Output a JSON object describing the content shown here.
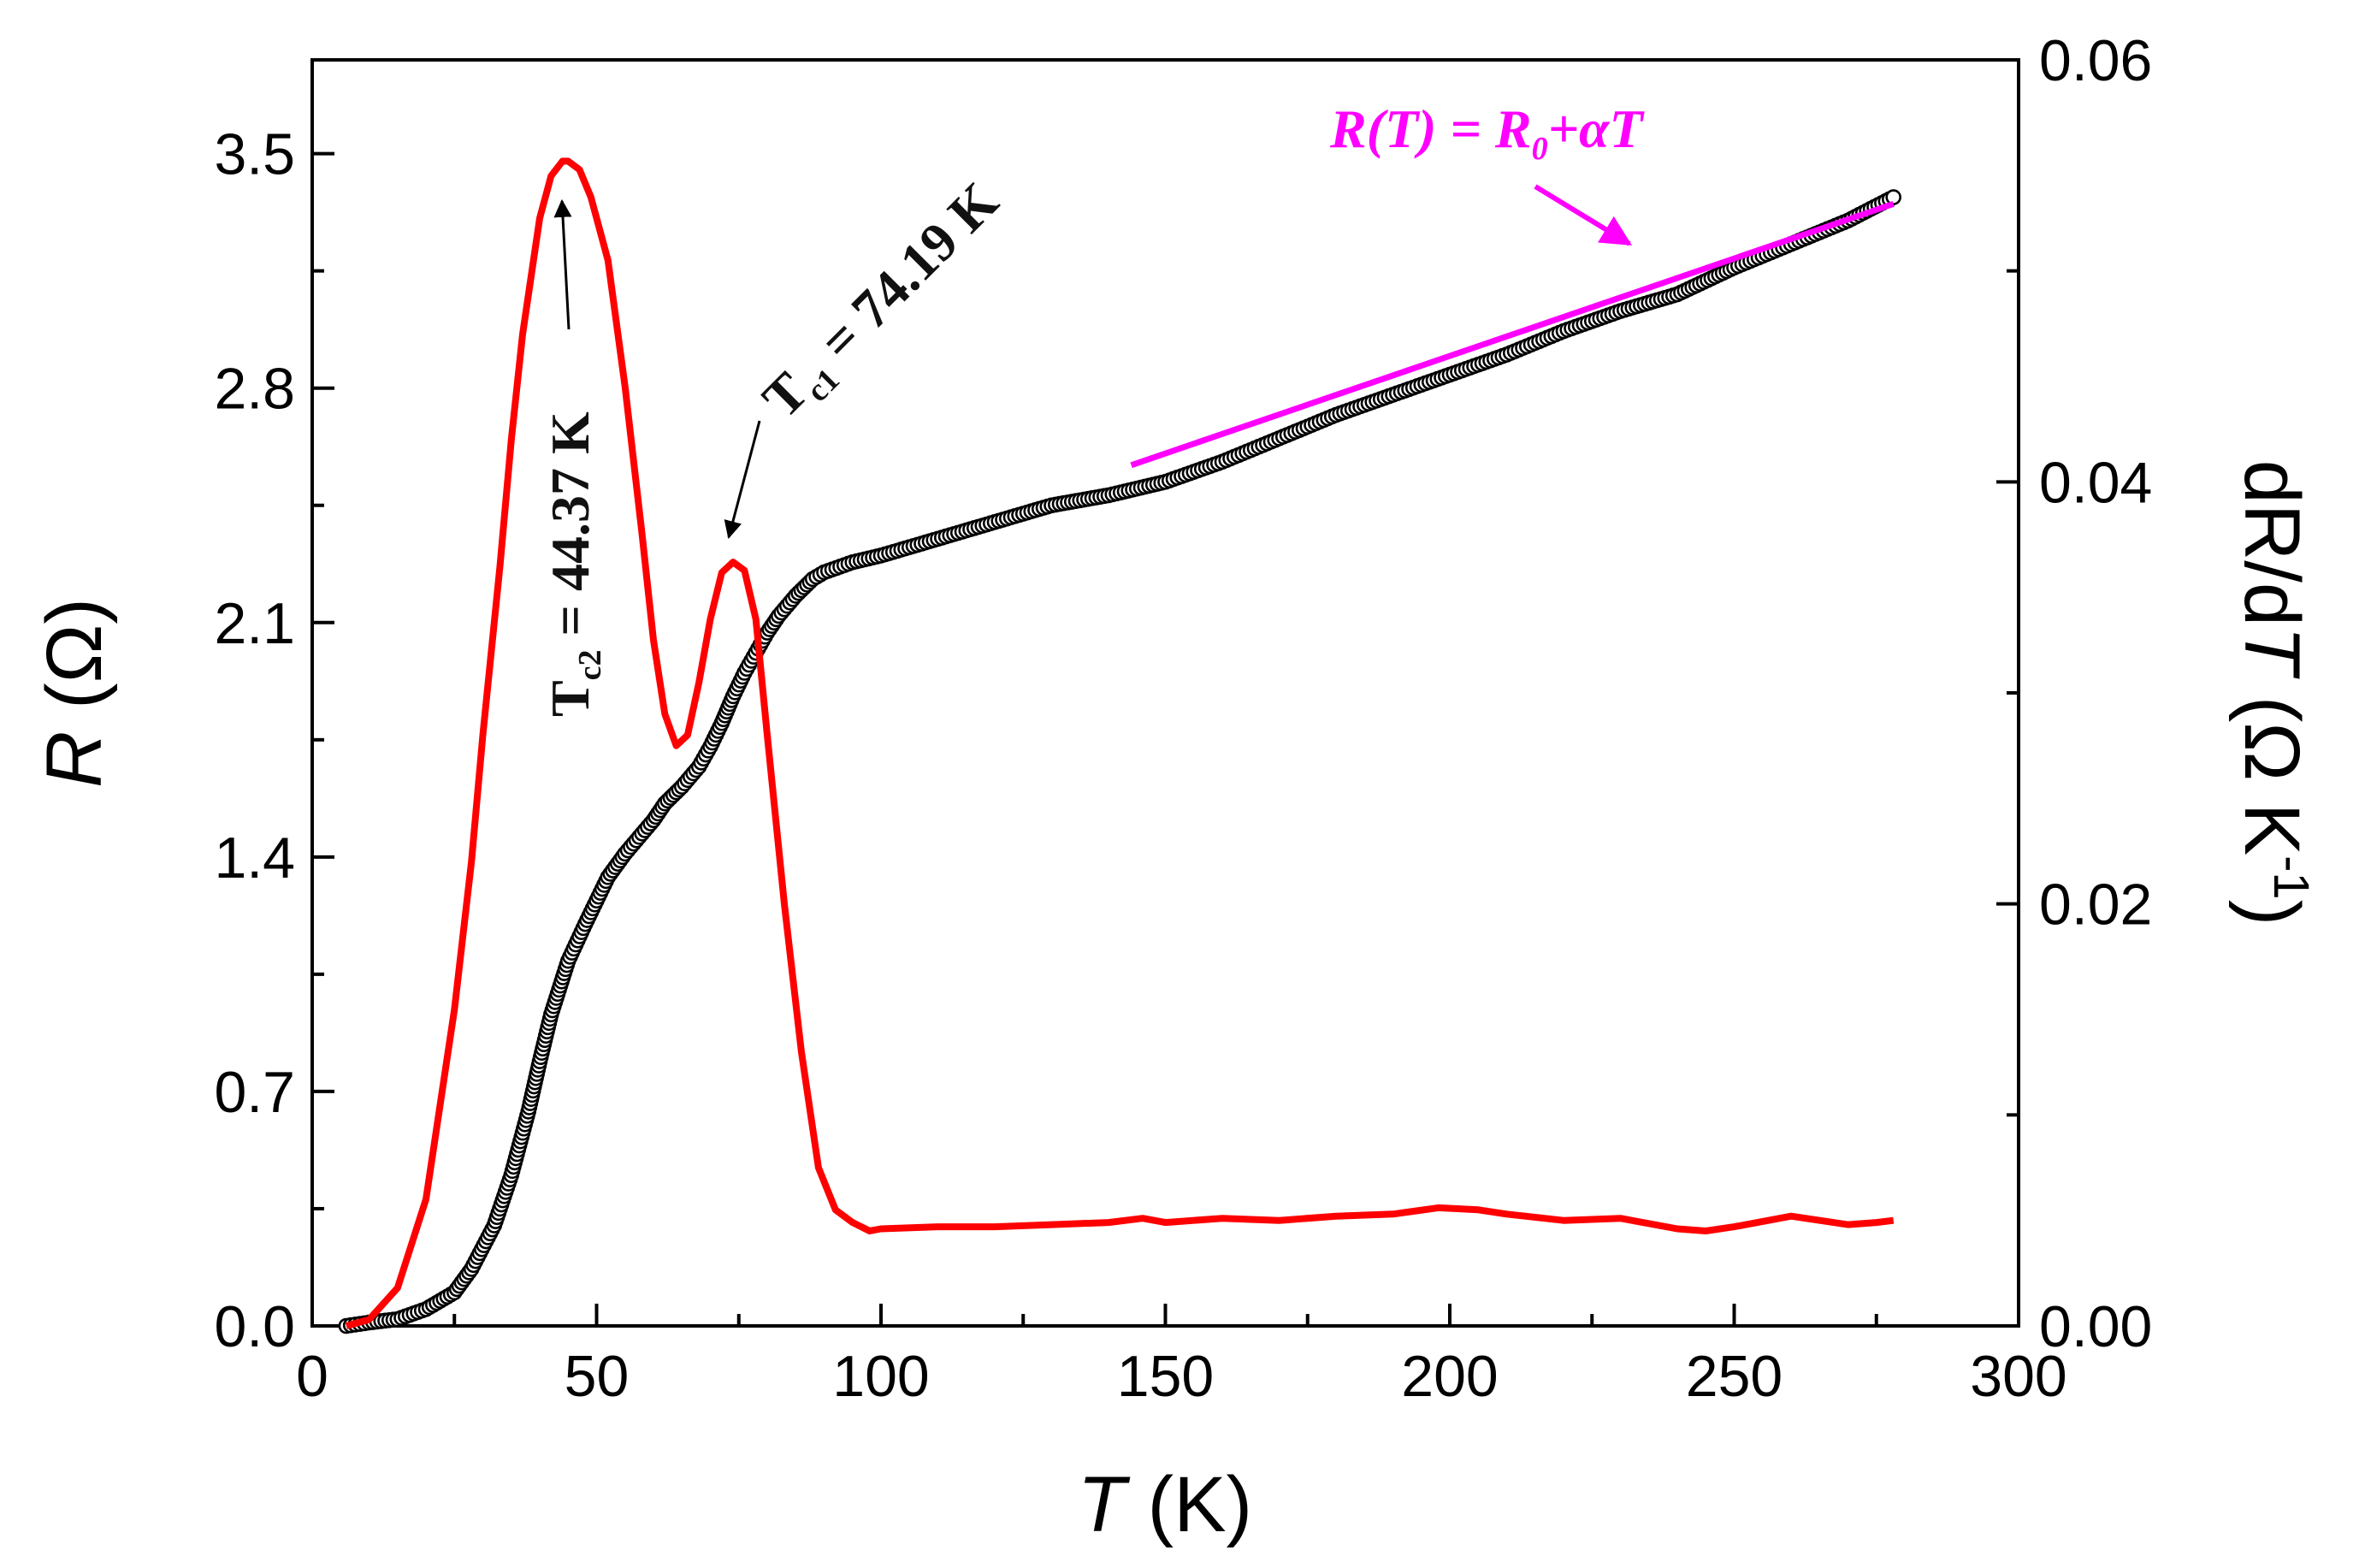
{
  "chart_data": {
    "type": "scatter",
    "title": "",
    "xlabel": {
      "italic": "T",
      "rest": " (K)"
    },
    "ylabel_left": {
      "italic": "R",
      "rest": " (Ω)"
    },
    "ylabel_right": {
      "pre": "dR/d",
      "italic": "T",
      "rest": " (Ω K",
      "sup": "-1",
      "close": ")"
    },
    "xlim": [
      0,
      300
    ],
    "ylim_left": [
      0,
      3.78
    ],
    "ylim_right": [
      0,
      0.06
    ],
    "x_ticks": [
      "0",
      "50",
      "100",
      "150",
      "200",
      "250",
      "300"
    ],
    "y_left_ticks": [
      "0.0",
      "0.7",
      "1.4",
      "2.1",
      "2.8",
      "3.5"
    ],
    "y_right_ticks": [
      "0.00",
      "0.02",
      "0.04",
      "0.06"
    ],
    "series": [
      {
        "name": "R(T)",
        "axis": "left",
        "style": "open-circles",
        "color": "#000000",
        "x": [
          6,
          10,
          15,
          20,
          25,
          28,
          32,
          35,
          38,
          40,
          42,
          45,
          48,
          50,
          52,
          55,
          58,
          60,
          62,
          65,
          68,
          70,
          72,
          74,
          76,
          78,
          80,
          82,
          85,
          88,
          90,
          95,
          100,
          110,
          120,
          130,
          140,
          150,
          160,
          170,
          180,
          190,
          200,
          210,
          220,
          230,
          240,
          250,
          260,
          270,
          278
        ],
        "y": [
          0.0,
          0.01,
          0.02,
          0.05,
          0.1,
          0.17,
          0.3,
          0.45,
          0.64,
          0.79,
          0.93,
          1.09,
          1.2,
          1.27,
          1.34,
          1.41,
          1.47,
          1.51,
          1.56,
          1.61,
          1.67,
          1.73,
          1.8,
          1.88,
          1.95,
          2.01,
          2.07,
          2.12,
          2.18,
          2.23,
          2.25,
          2.28,
          2.3,
          2.35,
          2.4,
          2.45,
          2.48,
          2.52,
          2.58,
          2.65,
          2.72,
          2.78,
          2.84,
          2.9,
          2.97,
          3.03,
          3.08,
          3.16,
          3.23,
          3.3,
          3.37
        ]
      },
      {
        "name": "dR/dT",
        "axis": "right",
        "style": "line",
        "color": "#ff0000",
        "x": [
          6,
          10,
          15,
          20,
          25,
          28,
          30,
          33,
          35,
          37,
          40,
          42,
          44,
          45,
          47,
          49,
          52,
          55,
          58,
          60,
          62,
          64,
          66,
          68,
          70,
          72,
          74,
          76,
          78,
          80,
          83,
          86,
          89,
          92,
          95,
          98,
          100,
          110,
          120,
          130,
          140,
          146,
          150,
          160,
          170,
          180,
          190,
          198,
          205,
          210,
          220,
          230,
          240,
          245,
          250,
          260,
          270,
          275,
          278
        ],
        "y": [
          0.0,
          0.0003,
          0.0018,
          0.006,
          0.015,
          0.022,
          0.028,
          0.036,
          0.042,
          0.047,
          0.0525,
          0.0545,
          0.0552,
          0.0552,
          0.0548,
          0.0535,
          0.0505,
          0.0445,
          0.0375,
          0.0325,
          0.029,
          0.0275,
          0.028,
          0.0305,
          0.0335,
          0.0357,
          0.0362,
          0.0358,
          0.0335,
          0.028,
          0.02,
          0.013,
          0.0075,
          0.0055,
          0.0049,
          0.0045,
          0.0046,
          0.0047,
          0.0047,
          0.0048,
          0.0049,
          0.0051,
          0.0049,
          0.0051,
          0.005,
          0.0052,
          0.0053,
          0.0056,
          0.0055,
          0.0053,
          0.005,
          0.0051,
          0.0046,
          0.0045,
          0.0047,
          0.0052,
          0.0048,
          0.0049,
          0.005
        ]
      },
      {
        "name": "R(T) = R0 + αT fit",
        "axis": "left",
        "style": "line",
        "color": "#ff00ff",
        "x": [
          144,
          278
        ],
        "y": [
          2.57,
          3.35
        ]
      }
    ],
    "annotations": [
      {
        "id": "tc2",
        "main": "T",
        "sub": "c2",
        "rest": " = 44.37 K",
        "points_to_x": 45,
        "points_to_y_right": 0.0552
      },
      {
        "id": "tc1",
        "main": "T",
        "sub": "c1",
        "rest": " = 74.19 K",
        "points_to_x": 74,
        "points_to_y_right": 0.0362
      },
      {
        "id": "fit",
        "main": "R(T) = R",
        "sub": "0",
        "rest": "+αT",
        "points_to_x": 237,
        "points_to_y_left": 3.16
      }
    ],
    "colors": {
      "r_data": "#000000",
      "derivative": "#ff0000",
      "fit": "#ff00ff"
    }
  }
}
